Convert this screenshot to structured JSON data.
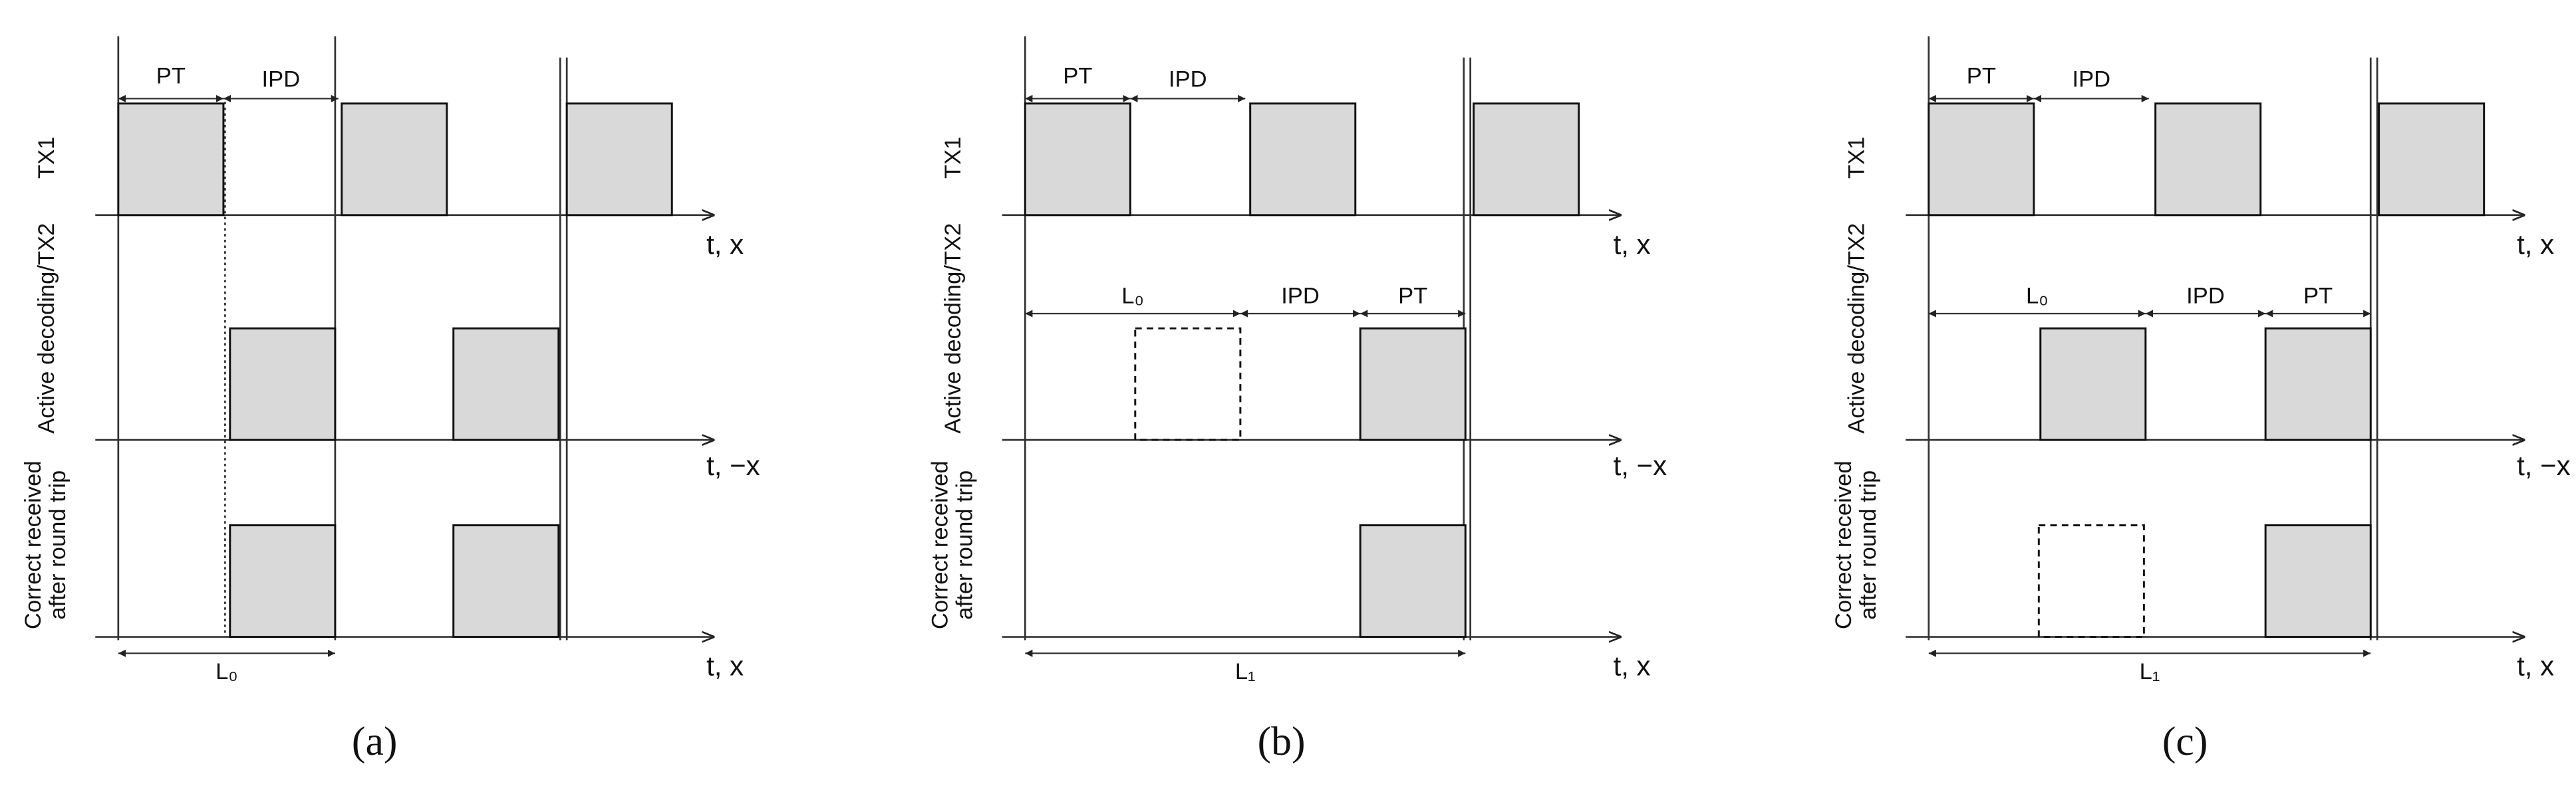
{
  "panels": [
    {
      "caption": "(a)",
      "row_labels": {
        "tx1": "TX1",
        "tx2": "Active decoding/TX2",
        "rx": [
          "Correct received",
          "after round trip"
        ]
      },
      "axis_labels": [
        "t, x",
        "t, −x",
        "t, x"
      ],
      "top_intervals": [
        "PT",
        "IPD"
      ],
      "mid_intervals": [],
      "bottom_interval": "L₀"
    },
    {
      "caption": "(b)",
      "row_labels": {
        "tx1": "TX1",
        "tx2": "Active decoding/TX2",
        "rx": [
          "Correct received",
          "after round trip"
        ]
      },
      "axis_labels": [
        "t, x",
        "t, −x",
        "t, x"
      ],
      "top_intervals": [
        "PT",
        "IPD"
      ],
      "mid_intervals": [
        "L₀",
        "IPD",
        "PT"
      ],
      "bottom_interval": "L₁"
    },
    {
      "caption": "(c)",
      "row_labels": {
        "tx1": "TX1",
        "tx2": "Active decoding/TX2",
        "rx": [
          "Correct received",
          "after round trip"
        ]
      },
      "axis_labels": [
        "t, x",
        "t, −x",
        "t, x"
      ],
      "top_intervals": [
        "PT",
        "IPD"
      ],
      "mid_intervals": [
        "L₀",
        "IPD",
        "PT"
      ],
      "bottom_interval": "L₁"
    }
  ]
}
